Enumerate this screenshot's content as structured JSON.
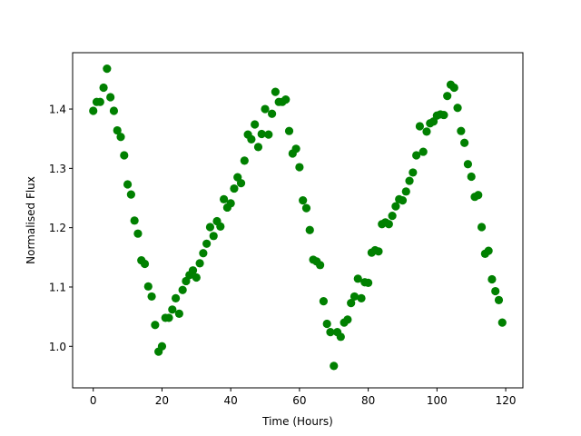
{
  "chart_data": {
    "type": "scatter",
    "title": "",
    "xlabel": "Time (Hours)",
    "ylabel": "Normalised Flux",
    "xlim": [
      -6,
      125
    ],
    "ylim": [
      0.93,
      1.495
    ],
    "xticks": [
      0,
      20,
      40,
      60,
      80,
      100,
      120
    ],
    "yticks": [
      1.0,
      1.1,
      1.2,
      1.3,
      1.4
    ],
    "xtick_labels": [
      "0",
      "20",
      "40",
      "60",
      "80",
      "100",
      "120"
    ],
    "ytick_labels": [
      "1.0",
      "1.1",
      "1.2",
      "1.3",
      "1.4"
    ],
    "grid": false,
    "marker_color": "#008000",
    "series": [
      {
        "x": [
          0,
          1,
          2,
          3,
          4,
          5,
          6,
          7,
          8,
          9,
          10,
          11,
          12,
          13,
          14,
          15,
          16,
          17,
          18,
          19,
          20,
          21,
          22,
          23,
          24,
          25,
          26,
          27,
          28,
          29,
          30,
          31,
          32,
          33,
          34,
          35,
          36,
          37,
          38,
          39,
          40,
          41,
          42,
          43,
          44,
          45,
          46,
          47,
          48,
          49,
          50,
          51,
          52,
          53,
          54,
          55,
          56,
          57,
          58,
          59,
          60,
          61,
          62,
          63,
          64,
          65,
          66,
          67,
          68,
          69,
          70,
          71,
          72,
          73,
          74,
          75,
          76,
          77,
          78,
          79,
          80,
          81,
          82,
          83,
          84,
          85,
          86,
          87,
          88,
          89,
          90,
          91,
          92,
          93,
          94,
          95,
          96,
          97,
          98,
          99,
          100,
          101,
          102,
          103,
          104,
          105,
          106,
          107,
          108,
          109,
          110,
          111,
          112,
          113,
          114,
          115,
          116,
          117,
          118,
          119
        ],
        "y": [
          1.397,
          1.412,
          1.412,
          1.436,
          1.468,
          1.42,
          1.397,
          1.364,
          1.353,
          1.322,
          1.273,
          1.256,
          1.212,
          1.19,
          1.145,
          1.139,
          1.101,
          1.084,
          1.036,
          0.991,
          1.0,
          1.048,
          1.048,
          1.062,
          1.081,
          1.055,
          1.095,
          1.11,
          1.12,
          1.128,
          1.116,
          1.14,
          1.157,
          1.173,
          1.201,
          1.186,
          1.211,
          1.202,
          1.248,
          1.234,
          1.241,
          1.266,
          1.285,
          1.275,
          1.313,
          1.357,
          1.349,
          1.374,
          1.336,
          1.358,
          1.4,
          1.357,
          1.392,
          1.429,
          1.412,
          1.412,
          1.416,
          1.363,
          1.325,
          1.333,
          1.302,
          1.246,
          1.233,
          1.196,
          1.146,
          1.143,
          1.137,
          1.076,
          1.038,
          1.024,
          0.967,
          1.024,
          1.016,
          1.04,
          1.045,
          1.073,
          1.084,
          1.114,
          1.081,
          1.108,
          1.107,
          1.158,
          1.162,
          1.16,
          1.206,
          1.209,
          1.206,
          1.22,
          1.236,
          1.248,
          1.246,
          1.261,
          1.279,
          1.293,
          1.322,
          1.371,
          1.328,
          1.362,
          1.376,
          1.379,
          1.389,
          1.391,
          1.39,
          1.422,
          1.441,
          1.436,
          1.402,
          1.363,
          1.343,
          1.307,
          1.286,
          1.252,
          1.255,
          1.201,
          1.156,
          1.161,
          1.113,
          1.093,
          1.078,
          1.04
        ]
      }
    ]
  }
}
